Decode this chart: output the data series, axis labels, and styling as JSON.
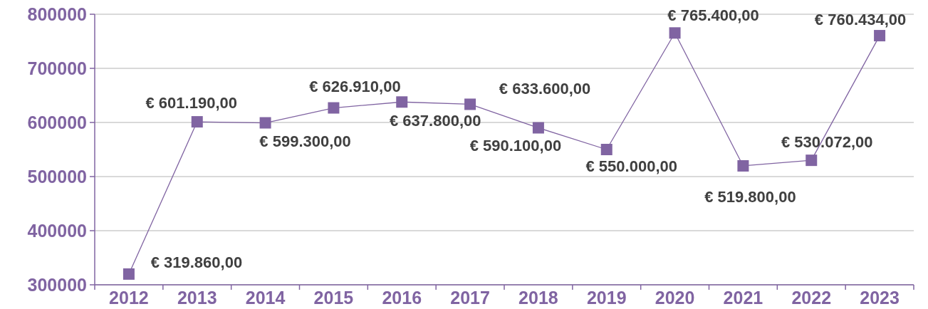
{
  "chart_data": {
    "type": "line",
    "categories": [
      "2012",
      "2013",
      "2014",
      "2015",
      "2016",
      "2017",
      "2018",
      "2019",
      "2020",
      "2021",
      "2022",
      "2023"
    ],
    "series": [
      {
        "color": "#8064a2",
        "values": [
          319860,
          601190,
          599300,
          626910,
          637800,
          633600,
          590100,
          550000,
          765400,
          519800,
          530072,
          760434
        ],
        "value_labels": [
          "€ 319.860,00",
          "€ 601.190,00",
          "€ 599.300,00",
          "€ 626.910,00",
          "€ 637.800,00",
          "€ 633.600,00",
          "€ 590.100,00",
          "€ 550.000,00",
          "€ 765.400,00",
          "€ 519.800,00",
          "€ 530.072,00",
          "€ 760.434,00"
        ]
      }
    ],
    "ylim": [
      300000,
      800000
    ],
    "yticks": [
      300000,
      400000,
      500000,
      600000,
      700000,
      800000
    ],
    "grid": "y",
    "marker": "square",
    "line_style": "solid"
  }
}
